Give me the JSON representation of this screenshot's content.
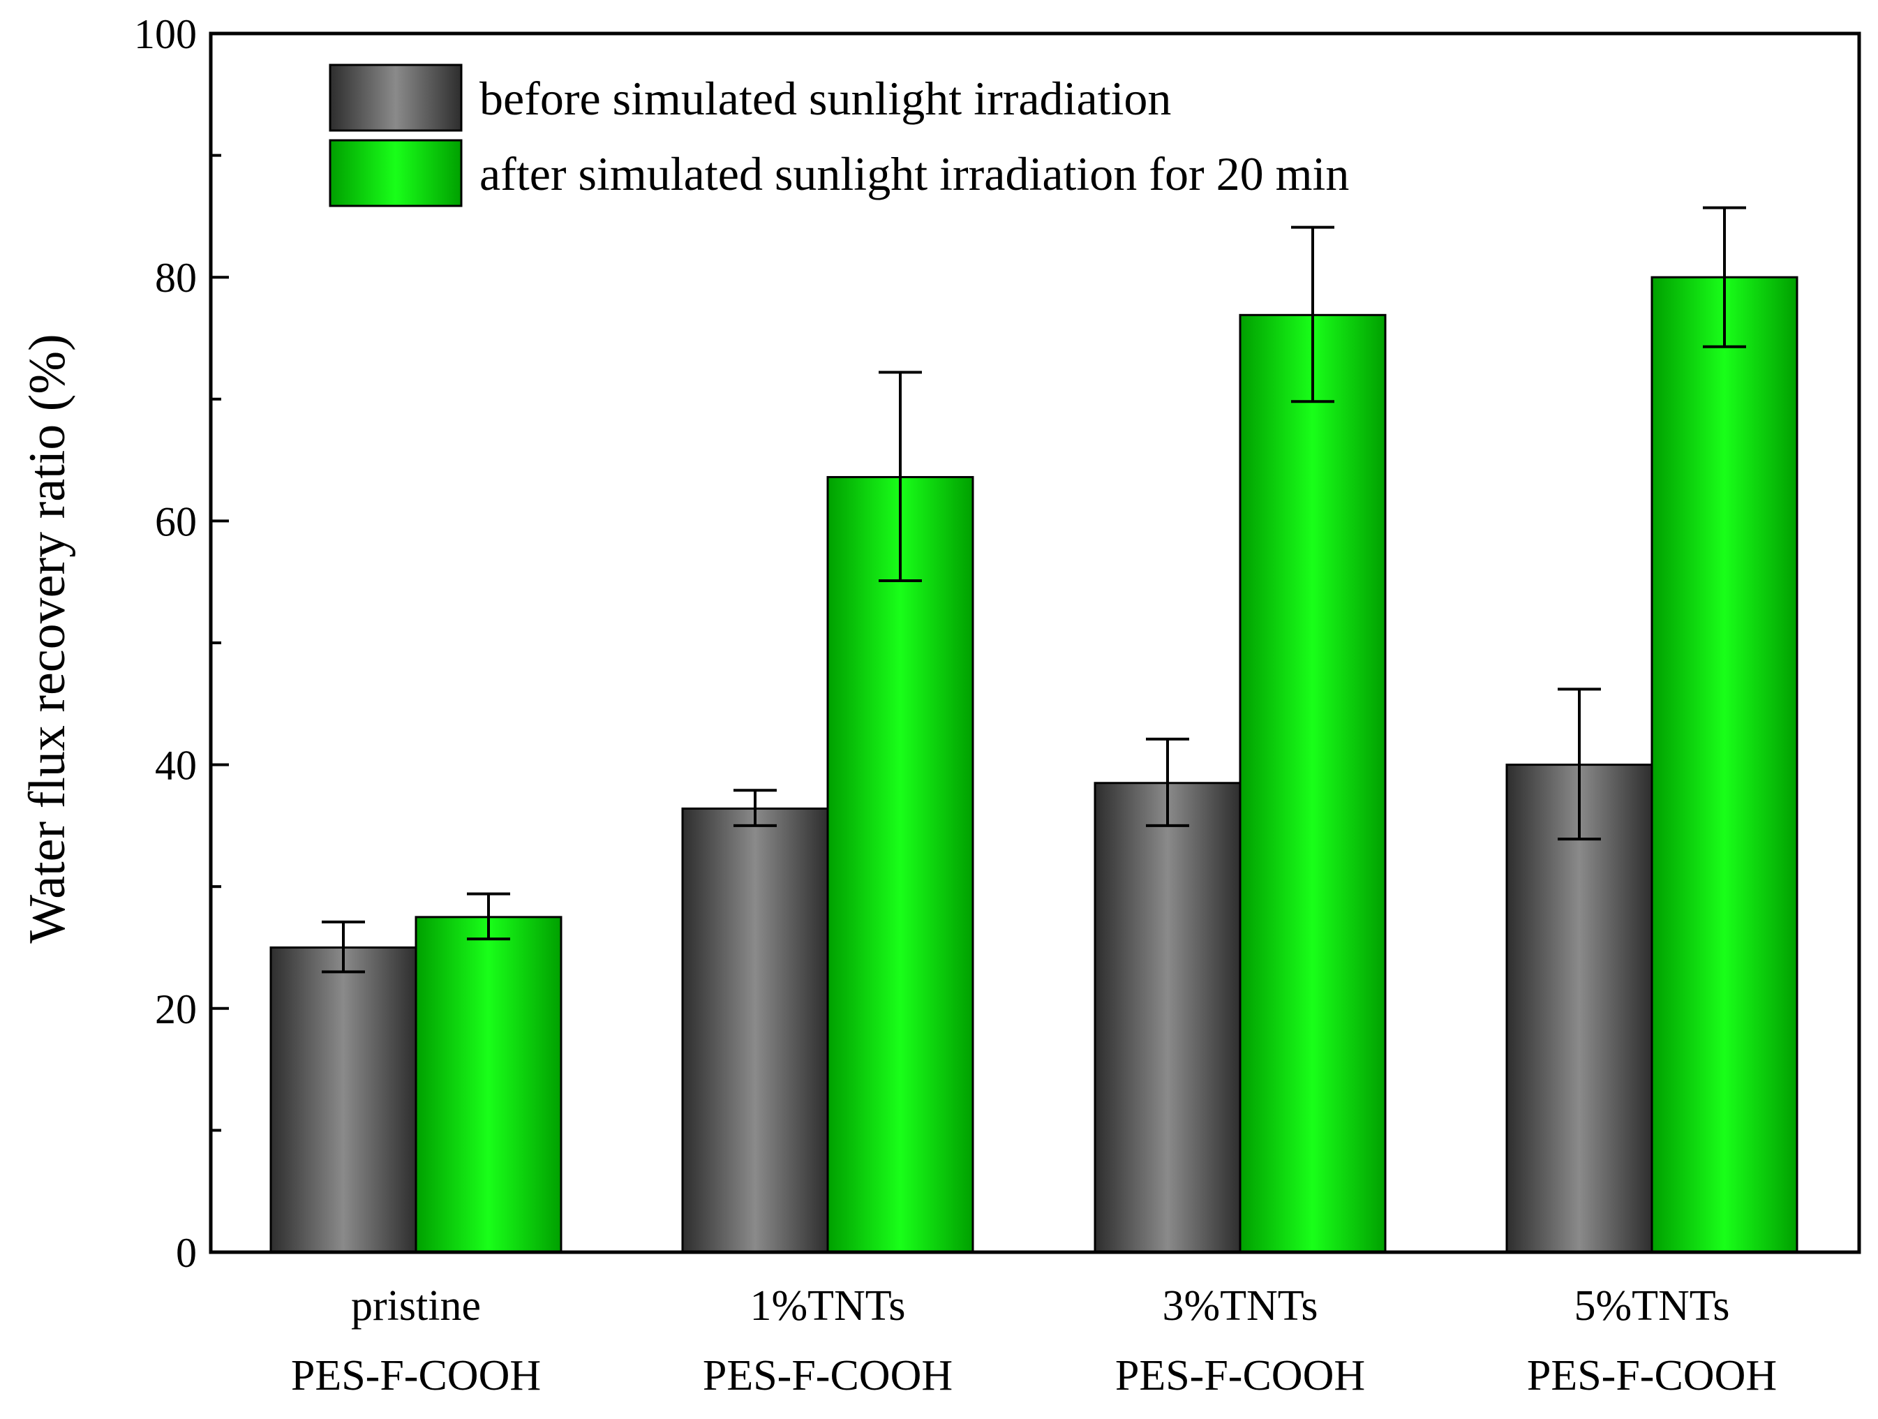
{
  "chart_data": {
    "type": "bar",
    "title": "",
    "xlabel": "",
    "ylabel": "Water flux recovery ratio (%)",
    "ylim": [
      0,
      100
    ],
    "y_major_ticks": [
      0,
      20,
      40,
      60,
      80,
      100
    ],
    "y_tick_labels": [
      "0",
      "20",
      "40",
      "60",
      "80",
      "100"
    ],
    "y_minor_ticks": [
      10,
      30,
      50,
      70,
      90
    ],
    "categories": [
      [
        "pristine",
        "PES-F-COOH"
      ],
      [
        "1%TNTs",
        "PES-F-COOH"
      ],
      [
        "3%TNTs",
        "PES-F-COOH"
      ],
      [
        "5%TNTs",
        "PES-F-COOH"
      ]
    ],
    "series": [
      {
        "name": "before simulated sunlight irradiation",
        "color": "#555555",
        "values": [
          25.0,
          36.4,
          38.5,
          40.0
        ],
        "error_low": [
          23.0,
          35.0,
          35.0,
          33.9
        ],
        "error_high": [
          27.1,
          37.9,
          42.1,
          46.2
        ]
      },
      {
        "name": "after simulated sunlight irradiation for 20 min",
        "color": "#00dd00",
        "values": [
          27.5,
          63.6,
          76.9,
          80.0
        ],
        "error_low": [
          25.7,
          55.1,
          69.8,
          74.3
        ],
        "error_high": [
          29.4,
          72.2,
          84.1,
          85.7
        ]
      }
    ],
    "legend_position": "top-left",
    "grid": false
  }
}
